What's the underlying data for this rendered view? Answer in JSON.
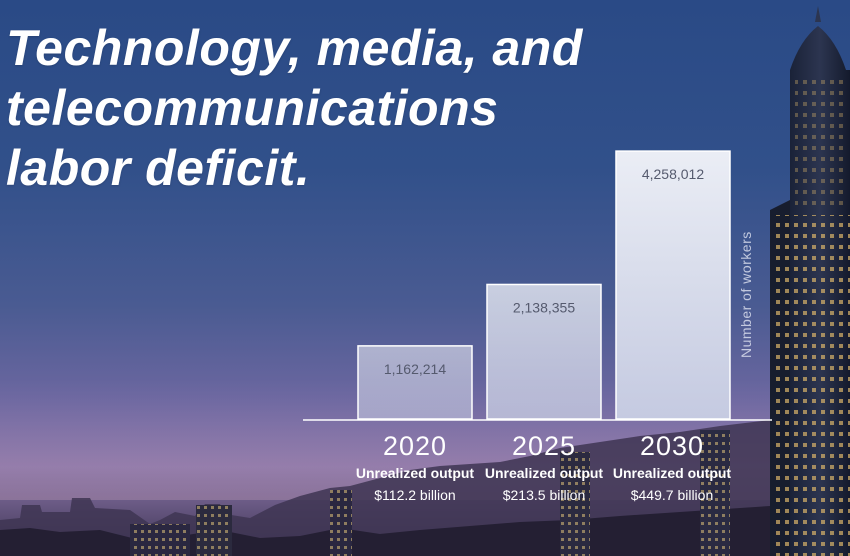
{
  "colors": {
    "bar_fill_start": "#c9cfe4",
    "bar_fill_end": "#f5f6fb",
    "bar_edge": "#ffffff",
    "text": "#ffffff",
    "bar_label": "#555a6e"
  },
  "chart_data": {
    "type": "bar",
    "title": "Technology, media, and telecommunications labor deficit.",
    "title_lines": [
      "Technology, media, and",
      "telecommunications",
      "labor deficit."
    ],
    "ylabel": "Number of workers",
    "ylim": [
      0,
      4800000
    ],
    "grid": false,
    "categories": [
      "2020",
      "2025",
      "2030"
    ],
    "values": [
      1162214,
      2138355,
      4258012
    ],
    "value_labels": [
      "1,162,214",
      "2,138,355",
      "4,258,012"
    ],
    "annotation_heading": "Unrealized output",
    "annotations": [
      "$112.2 billion",
      "$213.5 billion",
      "$449.7 billion"
    ]
  }
}
